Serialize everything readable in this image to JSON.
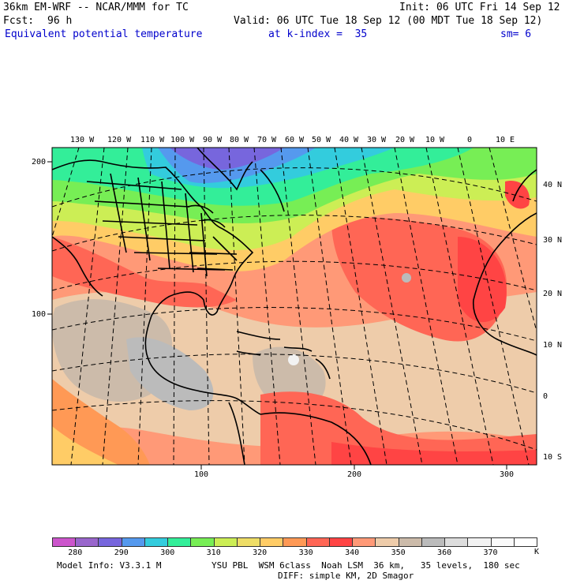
{
  "header": {
    "model": "36km EM-WRF -- NCAR/MMM for TC",
    "init": "Init: 06 UTC Fri 14 Sep 12",
    "fcst_label": "Fcst:",
    "fcst_value": "96 h",
    "valid": "Valid: 06 UTC Tue 18 Sep 12 (00 MDT Tue 18 Sep 12)",
    "field": "Equivalent potential temperature",
    "level": "at k-index =  35",
    "smooth": "sm= 6"
  },
  "map": {
    "top_lon_labels": [
      "130 W",
      "120 W",
      "110 W",
      "100 W",
      "90 W",
      "80 W",
      "70 W",
      "60 W",
      "50 W",
      "40 W",
      "30 W",
      "20 W",
      "10 W",
      "0",
      "10 E"
    ],
    "right_lat_labels": [
      "40 N",
      "30 N",
      "20 N",
      "10 N",
      "0",
      "10 S"
    ],
    "left_grid_labels": [
      "200",
      "100"
    ],
    "bottom_grid_labels": [
      "100",
      "200",
      "300"
    ]
  },
  "colorbar": {
    "unit": "K",
    "tick_labels": [
      "280",
      "290",
      "300",
      "310",
      "320",
      "330",
      "340",
      "350",
      "360",
      "370"
    ],
    "colors": [
      "#cc55cc",
      "#9966cc",
      "#7766dd",
      "#5599ee",
      "#33ccdd",
      "#33ee99",
      "#77ee55",
      "#ccee55",
      "#eedd66",
      "#ffcc66",
      "#ff9955",
      "#ff6655",
      "#ff4444",
      "#ff9977",
      "#eeccaa",
      "#ccbbaa",
      "#bbbbbb",
      "#dddddd",
      "#f2f2f2",
      "#fafafa",
      "#ffffff"
    ]
  },
  "footer": {
    "model_info": "Model Info: V3.3.1 M",
    "physics": "YSU PBL  WSM 6class  Noah LSM  36 km,   35 levels,  180 sec",
    "diffusion": "DIFF: simple KM, 2D Smagor"
  }
}
